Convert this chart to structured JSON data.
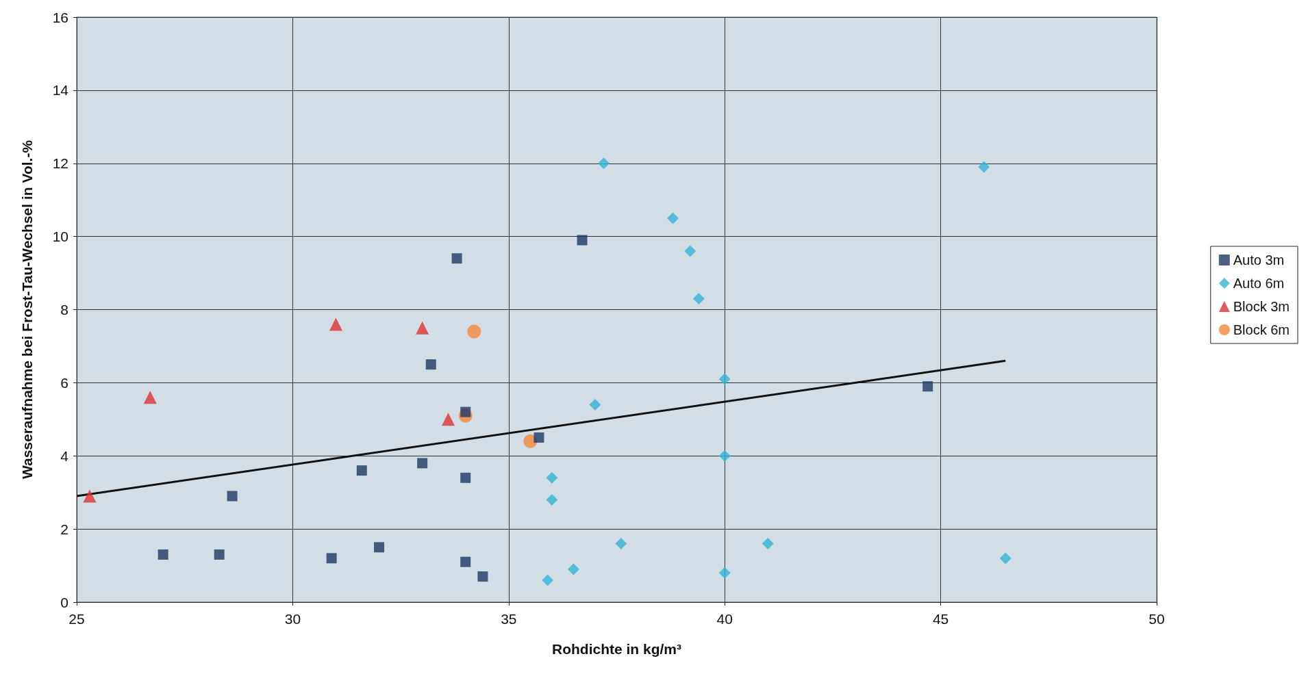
{
  "chart_data": {
    "type": "scatter",
    "xlabel": "Rohdichte in kg/m³",
    "ylabel": "Wasseraufnahme bei Frost-Tau-Wechsel in Vol.-%",
    "xlim": [
      25,
      50
    ],
    "xticks": [
      25,
      30,
      35,
      40,
      45,
      50
    ],
    "ylim": [
      0,
      16
    ],
    "yticks": [
      0,
      2,
      4,
      6,
      8,
      10,
      12,
      14,
      16
    ],
    "grid": true,
    "legend": "right",
    "series": [
      {
        "name": "Auto 3m",
        "color": "#1f3864",
        "marker": "square",
        "x": [
          27.0,
          28.3,
          28.6,
          30.9,
          31.6,
          32.0,
          33.0,
          33.2,
          33.8,
          34.0,
          34.0,
          34.0,
          34.4,
          35.7,
          36.7,
          44.7
        ],
        "values": [
          1.3,
          1.3,
          2.9,
          1.2,
          3.6,
          1.5,
          3.8,
          6.5,
          9.4,
          3.4,
          1.1,
          5.2,
          0.7,
          4.5,
          9.9,
          5.9
        ]
      },
      {
        "name": "Auto 6m",
        "color": "#33b5d6",
        "marker": "diamond",
        "x": [
          35.9,
          36.0,
          36.0,
          36.5,
          37.0,
          37.2,
          37.6,
          38.8,
          39.2,
          39.4,
          40.0,
          40.0,
          40.0,
          41.0,
          46.0,
          46.5
        ],
        "values": [
          0.6,
          2.8,
          3.4,
          0.9,
          5.4,
          12.0,
          1.6,
          10.5,
          9.6,
          8.3,
          6.1,
          4.0,
          0.8,
          1.6,
          11.9,
          1.2
        ]
      },
      {
        "name": "Block 3m",
        "color": "#e03232",
        "marker": "triangle",
        "x": [
          25.3,
          26.7,
          31.0,
          33.0,
          33.6
        ],
        "values": [
          2.9,
          5.6,
          7.6,
          7.5,
          5.0
        ]
      },
      {
        "name": "Block 6m",
        "color": "#f4873a",
        "marker": "circle",
        "x": [
          34.0,
          34.2,
          35.5
        ],
        "values": [
          5.1,
          7.4,
          4.4
        ]
      },
      {
        "type": "line",
        "color": "#111111",
        "marker": "none",
        "line_style": "solid",
        "x": [
          25.0,
          46.5
        ],
        "values": [
          2.9,
          6.6
        ]
      }
    ]
  }
}
